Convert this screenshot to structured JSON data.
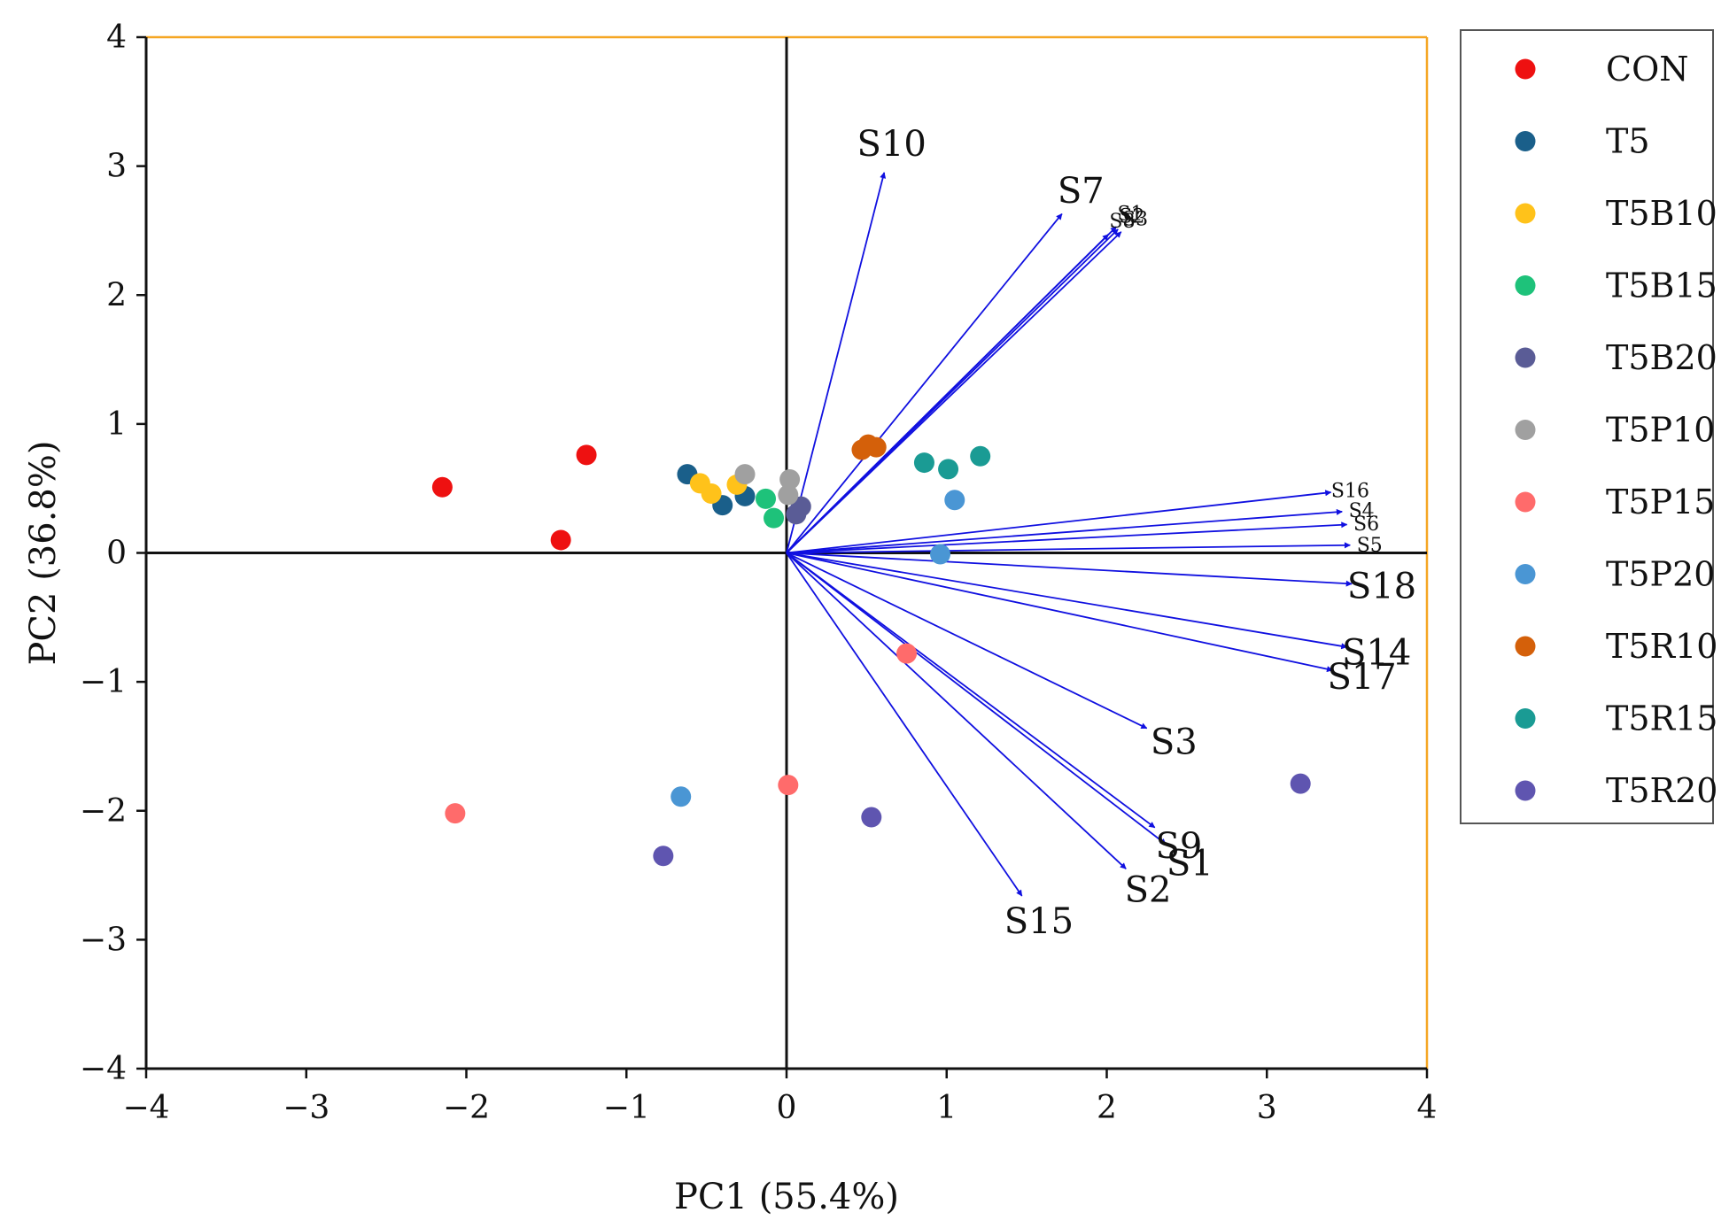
{
  "chart_data": {
    "type": "scatter",
    "subtype": "pca-biplot",
    "title": "",
    "xlabel": "PC1 (55.4%)",
    "ylabel": "PC2 (36.8%)",
    "xlim": [
      -4,
      4
    ],
    "ylim": [
      -4,
      4
    ],
    "x_ticks": [
      -4,
      -3,
      -2,
      -1,
      0,
      1,
      2,
      3,
      4
    ],
    "y_ticks": [
      -4,
      -3,
      -2,
      -1,
      0,
      1,
      2,
      3,
      4
    ],
    "x_tick_labels": [
      "−4",
      "−3",
      "−2",
      "−1",
      "0",
      "1",
      "2",
      "3",
      "4"
    ],
    "y_tick_labels": [
      "−4",
      "−3",
      "−2",
      "−1",
      "0",
      "1",
      "2",
      "3",
      "4"
    ],
    "grid": false,
    "legend_position": "right",
    "frame_color": "#f5a623",
    "arrow_color": "#1010e0",
    "series": [
      {
        "name": "CON",
        "color": "#ee1111",
        "points": [
          [
            -2.15,
            0.51
          ],
          [
            -1.25,
            0.76
          ],
          [
            -1.41,
            0.1
          ]
        ]
      },
      {
        "name": "T5",
        "color": "#1a5f8a",
        "points": [
          [
            -0.62,
            0.61
          ],
          [
            -0.4,
            0.37
          ],
          [
            -0.26,
            0.44
          ]
        ]
      },
      {
        "name": "T5B10",
        "color": "#ffc21a",
        "points": [
          [
            -0.54,
            0.54
          ],
          [
            -0.47,
            0.46
          ],
          [
            -0.31,
            0.53
          ]
        ]
      },
      {
        "name": "T5B15",
        "color": "#1ec27a",
        "points": [
          [
            -0.13,
            0.42
          ],
          [
            -0.08,
            0.27
          ]
        ]
      },
      {
        "name": "T5B20",
        "color": "#5a5c96",
        "points": [
          [
            0.06,
            0.3
          ],
          [
            0.09,
            0.36
          ]
        ]
      },
      {
        "name": "T5P10",
        "color": "#a0a0a0",
        "points": [
          [
            -0.26,
            0.61
          ],
          [
            0.02,
            0.57
          ],
          [
            0.01,
            0.45
          ]
        ]
      },
      {
        "name": "T5P15",
        "color": "#ff6b6b",
        "points": [
          [
            -2.07,
            -2.02
          ],
          [
            0.01,
            -1.8
          ],
          [
            0.75,
            -0.78
          ]
        ]
      },
      {
        "name": "T5P20",
        "color": "#4a96d4",
        "points": [
          [
            -0.66,
            -1.89
          ],
          [
            1.05,
            0.41
          ],
          [
            0.96,
            -0.01
          ]
        ]
      },
      {
        "name": "T5R10",
        "color": "#d4600a",
        "points": [
          [
            0.47,
            0.8
          ],
          [
            0.51,
            0.84
          ],
          [
            0.56,
            0.82
          ]
        ]
      },
      {
        "name": "T5R15",
        "color": "#1a9b94",
        "points": [
          [
            0.86,
            0.7
          ],
          [
            1.01,
            0.65
          ],
          [
            1.21,
            0.75
          ]
        ]
      },
      {
        "name": "T5R20",
        "color": "#5f55b0",
        "points": [
          [
            -0.77,
            -2.35
          ],
          [
            0.53,
            -2.05
          ],
          [
            3.21,
            -1.79
          ]
        ]
      }
    ],
    "loadings": [
      {
        "label": "S10",
        "x": 0.61,
        "y": 2.95,
        "label_size": "large"
      },
      {
        "label": "S7",
        "x": 1.72,
        "y": 2.63,
        "label_size": "large"
      },
      {
        "label": "S8",
        "x": 2.01,
        "y": 2.47,
        "label_size": "small"
      },
      {
        "label": "S1",
        "x": 2.06,
        "y": 2.53,
        "label_size": "small"
      },
      {
        "label": "S2",
        "x": 2.07,
        "y": 2.51,
        "label_size": "small"
      },
      {
        "label": "S3",
        "x": 2.09,
        "y": 2.49,
        "label_size": "small"
      },
      {
        "label": "S16",
        "x": 3.4,
        "y": 0.47,
        "label_size": "small"
      },
      {
        "label": "S4",
        "x": 3.47,
        "y": 0.32,
        "label_size": "small"
      },
      {
        "label": "S6",
        "x": 3.5,
        "y": 0.22,
        "label_size": "small"
      },
      {
        "label": "S5",
        "x": 3.52,
        "y": 0.06,
        "label_size": "small"
      },
      {
        "label": "S18",
        "x": 3.53,
        "y": -0.24,
        "label_size": "large"
      },
      {
        "label": "S14",
        "x": 3.5,
        "y": -0.73,
        "label_size": "large"
      },
      {
        "label": "S17",
        "x": 3.41,
        "y": -0.91,
        "label_size": "large"
      },
      {
        "label": "S3",
        "x": 2.25,
        "y": -1.36,
        "label_size": "large"
      },
      {
        "label": "S9",
        "x": 2.3,
        "y": -2.13,
        "label_size": "large"
      },
      {
        "label": "S1",
        "x": 2.37,
        "y": -2.26,
        "label_size": "large"
      },
      {
        "label": "S2",
        "x": 2.12,
        "y": -2.45,
        "label_size": "large"
      },
      {
        "label": "S15",
        "x": 1.47,
        "y": -2.66,
        "label_size": "large"
      }
    ]
  }
}
